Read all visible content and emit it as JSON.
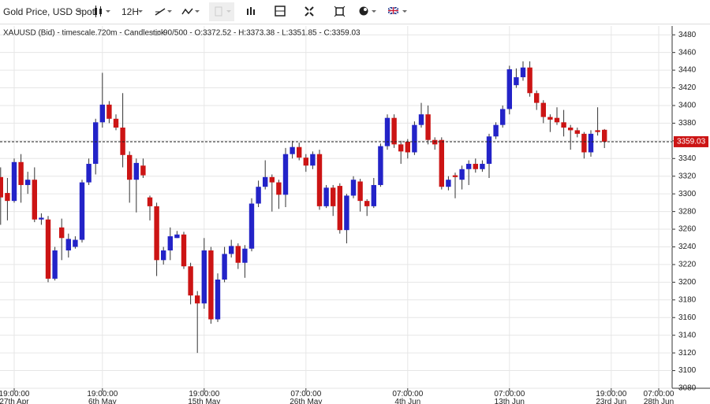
{
  "toolbar": {
    "instrument": "Gold Price, USD Spot",
    "interval": "12H"
  },
  "chart_data": {
    "type": "candlestick",
    "title": "XAUUSD (Bid) - timescale.720m - Candlestick",
    "subtitle": "90/500 - O:3372.52 - H:3373.38 - L:3351.85 - C:3359.03",
    "up_color": "#2323c8",
    "down_color": "#cc1414",
    "grid": true,
    "ylim": [
      3080,
      3490
    ],
    "yticks": [
      3080,
      3100,
      3120,
      3140,
      3160,
      3180,
      3200,
      3220,
      3240,
      3260,
      3280,
      3300,
      3320,
      3340,
      3360,
      3380,
      3400,
      3420,
      3440,
      3460,
      3480
    ],
    "last_price": 3359.03,
    "last_price_color": "#cc1414",
    "categories": [
      null,
      null,
      "19:00:00\n27th Apr",
      null,
      null,
      null,
      null,
      null,
      null,
      null,
      null,
      null,
      null,
      null,
      null,
      "19:00:00\n6th May",
      null,
      null,
      null,
      null,
      null,
      null,
      null,
      null,
      null,
      null,
      null,
      null,
      null,
      null,
      "19:00:00\n15th May",
      null,
      null,
      null,
      null,
      null,
      null,
      null,
      null,
      null,
      null,
      null,
      null,
      null,
      null,
      "07:00:00\n26th May",
      null,
      null,
      null,
      null,
      null,
      null,
      null,
      null,
      null,
      null,
      null,
      null,
      null,
      null,
      "07:00:00\n4th Jun",
      null,
      null,
      null,
      null,
      null,
      null,
      null,
      null,
      null,
      null,
      null,
      null,
      null,
      null,
      "07:00:00\n13th Jun",
      null,
      null,
      null,
      null,
      null,
      null,
      null,
      null,
      null,
      null,
      null,
      null,
      null,
      null,
      "19:00:00\n23rd Jun",
      null,
      null,
      null,
      null,
      null,
      null,
      "07:00:00\n28th Jun"
    ],
    "open": [
      3319,
      3301,
      3292,
      3336,
      3310,
      3316,
      3271,
      3271,
      3204,
      3262,
      3236,
      3240,
      3248,
      3313,
      3334,
      3381,
      3401,
      3385,
      3375,
      3344,
      3316,
      3332,
      3296,
      3286,
      3225,
      3236,
      3250,
      3254,
      3218,
      3185,
      3176,
      3236,
      3158,
      3203,
      3232,
      3241,
      3222,
      3238,
      3289,
      3308,
      3319,
      3313,
      3299,
      3345,
      3353,
      3341,
      3332,
      3345,
      3286,
      3307,
      3309,
      3259,
      3298,
      3314,
      3292,
      3286,
      3310,
      3354,
      3386,
      3356,
      3359,
      3347,
      3378,
      3390,
      3361,
      3361,
      3308,
      3321,
      3316,
      3328,
      3334,
      3328,
      3334,
      3365,
      3378,
      3396,
      3423,
      3432,
      3443,
      3414,
      3403,
      3387,
      3386,
      3381,
      3375,
      3372,
      3368,
      3347,
      3372,
      3372.52,
      null,
      null,
      null,
      null,
      null,
      null,
      null,
      null
    ],
    "high": [
      3330,
      3318,
      3340,
      3345,
      3325,
      3330,
      3278,
      3275,
      3240,
      3272,
      3255,
      3252,
      3316,
      3340,
      3385,
      3437,
      3405,
      3390,
      3414,
      3348,
      3340,
      3340,
      3298,
      3290,
      3240,
      3262,
      3258,
      3257,
      3222,
      3190,
      3250,
      3240,
      3210,
      3240,
      3248,
      3244,
      3242,
      3295,
      3315,
      3338,
      3322,
      3316,
      3352,
      3360,
      3358,
      3345,
      3348,
      3350,
      3310,
      3310,
      3312,
      3300,
      3320,
      3317,
      3294,
      3318,
      3357,
      3390,
      3390,
      3360,
      3362,
      3382,
      3403,
      3400,
      3364,
      3364,
      3320,
      3324,
      3332,
      3338,
      3340,
      3338,
      3368,
      3381,
      3400,
      3445,
      3442,
      3450,
      3450,
      3417,
      3406,
      3390,
      3398,
      3395,
      3378,
      3375,
      3370,
      3372,
      3398,
      3373.38,
      null,
      null,
      null,
      null,
      null,
      null,
      null,
      null
    ],
    "low": [
      3265,
      3270,
      3290,
      3290,
      3300,
      3268,
      3265,
      3200,
      3202,
      3225,
      3228,
      3238,
      3245,
      3310,
      3322,
      3375,
      3380,
      3372,
      3330,
      3290,
      3279,
      3318,
      3270,
      3207,
      3220,
      3225,
      3250,
      3215,
      3175,
      3120,
      3170,
      3153,
      3155,
      3200,
      3228,
      3215,
      3205,
      3235,
      3285,
      3305,
      3280,
      3283,
      3285,
      3340,
      3338,
      3325,
      3328,
      3282,
      3284,
      3275,
      3255,
      3244,
      3295,
      3280,
      3275,
      3284,
      3308,
      3350,
      3352,
      3334,
      3340,
      3344,
      3375,
      3356,
      3350,
      3305,
      3304,
      3295,
      3305,
      3310,
      3324,
      3325,
      3318,
      3362,
      3375,
      3390,
      3420,
      3428,
      3410,
      3395,
      3380,
      3370,
      3378,
      3365,
      3350,
      3364,
      3340,
      3342,
      3366,
      3351.85,
      null,
      null,
      null,
      null,
      null,
      null,
      null,
      null
    ],
    "close": [
      3296,
      3292,
      3336,
      3310,
      3316,
      3271,
      3273,
      3204,
      3236,
      3250,
      3249,
      3248,
      3313,
      3334,
      3381,
      3401,
      3385,
      3375,
      3344,
      3316,
      3335,
      3321,
      3286,
      3225,
      3236,
      3252,
      3254,
      3218,
      3185,
      3176,
      3236,
      3158,
      3203,
      3232,
      3241,
      3222,
      3238,
      3289,
      3308,
      3319,
      3313,
      3299,
      3345,
      3353,
      3341,
      3332,
      3345,
      3286,
      3307,
      3286,
      3259,
      3298,
      3316,
      3292,
      3286,
      3310,
      3354,
      3386,
      3356,
      3348,
      3347,
      3378,
      3390,
      3361,
      3356,
      3308,
      3316,
      3319,
      3328,
      3334,
      3328,
      3334,
      3365,
      3378,
      3396,
      3441,
      3432,
      3443,
      3414,
      3403,
      3387,
      3384,
      3381,
      3375,
      3372,
      3368,
      3347,
      3368,
      3370,
      3359.03,
      null,
      null,
      null,
      null,
      null,
      null,
      null,
      null
    ]
  }
}
